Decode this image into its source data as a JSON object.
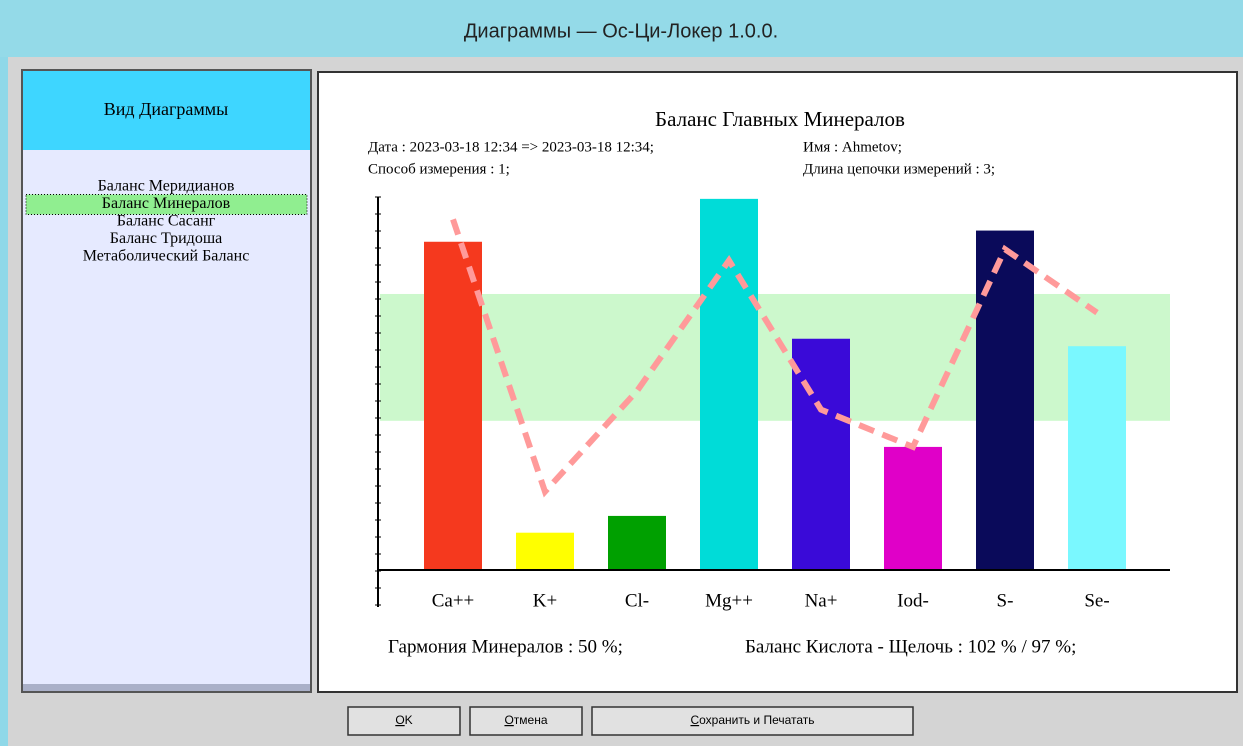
{
  "window": {
    "title": "Диаграммы — Ос-Ци-Локер 1.0.0."
  },
  "sidebar": {
    "header": "Вид Диаграммы",
    "items": [
      "Баланс Меридианов",
      "Баланс Минералов",
      "Баланс Сасанг",
      "Баланс Тридоша",
      "Метаболический Баланс"
    ],
    "selected": 1
  },
  "chart_data": {
    "type": "bar",
    "title": "Баланс Главных Минералов",
    "info": [
      "Дата : 2023-03-18 12:34 => 2023-03-18 12:34;",
      "Имя : Ahmetov;",
      "Способ измерения : 1;",
      "Длина цепочки измерений : 3;"
    ],
    "categories": [
      "Ca++",
      "K+",
      "Cl-",
      "Mg++",
      "Na+",
      "Iod-",
      "S-",
      "Se-"
    ],
    "values": [
      88,
      10,
      14.5,
      99.5,
      62,
      33,
      91,
      60
    ],
    "colors": [
      "#f5391e",
      "#ffff00",
      "#00a000",
      "#00dcd8",
      "#3a0ad8",
      "#e000c8",
      "#0a0a5a",
      "#7af8ff"
    ],
    "line_values": [
      94,
      21,
      48,
      83,
      43,
      33,
      86,
      69
    ],
    "line_color": "#ff9a9a",
    "band": [
      40,
      74
    ],
    "band_color": "#ccf8cc",
    "ylim": [
      0,
      100
    ],
    "footer": [
      "Гармония Минералов : 50 %;",
      "Баланс Кислота - Щелочь : 102 % / 97 %;"
    ]
  },
  "buttons": [
    "OK",
    "Отмена",
    "Сохранить и Печатать"
  ]
}
